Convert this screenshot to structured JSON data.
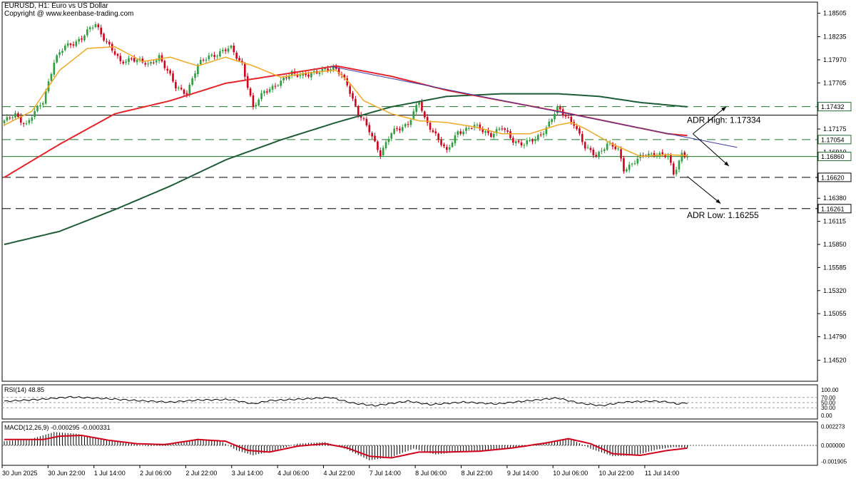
{
  "header": {
    "symbol_line": "EURUSD, H1:  Euro vs US Dollar",
    "copyright": "Copyright @ www.keenbase-trading.com"
  },
  "colors": {
    "background": "#ffffff",
    "bull_candle": "#2e9e3e",
    "bear_candle": "#d0021b",
    "ma_fast": "#f0a824",
    "ma_mid": "#e3242b",
    "ma_slow": "#1e5c36",
    "trendline": "#3a3aa8",
    "macd_line": "#d0021b",
    "histogram": "#000000",
    "price_tag_green": "#1f6f2c",
    "price_tag_black": "#000000"
  },
  "chart_data": {
    "type": "candlestick",
    "timeframe": "H1",
    "price_axis": {
      "range": [
        1.14279,
        1.18632
      ],
      "ticks": [
        "1.18505",
        "1.18235",
        "1.17970",
        "1.17705",
        "1.17435",
        "1.17175",
        "1.16910",
        "1.16645",
        "1.16380",
        "1.16115",
        "1.15850",
        "1.15585",
        "1.15320",
        "1.15055",
        "1.14790",
        "1.14520"
      ]
    },
    "time_axis": {
      "ticks": [
        "30 Jun 2025",
        "30 Jun 22:00",
        "1 Jul 14:00",
        "2 Jul 06:00",
        "2 Jul 22:00",
        "3 Jul 14:00",
        "4 Jul 06:00",
        "4 Jul 22:00",
        "7 Jul 14:00",
        "8 Jul 06:00",
        "8 Jul 22:00",
        "9 Jul 14:00",
        "10 Jul 06:00",
        "10 Jul 22:00",
        "11 Jul 14:00"
      ]
    },
    "price_tags": [
      {
        "value": "1.17432",
        "style": "green"
      },
      {
        "value": "1.17054",
        "style": "green"
      },
      {
        "value": "1.16860",
        "style": "green"
      },
      {
        "value": "1.16620",
        "style": "black"
      },
      {
        "value": "1.16261",
        "style": "black"
      }
    ],
    "horizontal_levels": [
      {
        "price": 1.17432,
        "style": "dashed",
        "color": "#1e7a2a"
      },
      {
        "price": 1.17334,
        "style": "solid",
        "color": "#000000"
      },
      {
        "price": 1.17054,
        "style": "dashed",
        "color": "#1e7a2a"
      },
      {
        "price": 1.1686,
        "style": "solid",
        "color": "#1e7a2a"
      },
      {
        "price": 1.1662,
        "style": "dashed",
        "color": "#000000"
      },
      {
        "price": 1.16261,
        "style": "dashed",
        "color": "#000000"
      }
    ],
    "annotations": [
      {
        "text": "ADR High: 1.17334"
      },
      {
        "text": "ADR Low: 1.16255"
      }
    ],
    "close_anchors": [
      [
        0,
        1.1725
      ],
      [
        4,
        1.1735
      ],
      [
        8,
        1.1722
      ],
      [
        14,
        1.175
      ],
      [
        18,
        1.1795
      ],
      [
        22,
        1.1812
      ],
      [
        28,
        1.1822
      ],
      [
        33,
        1.1838
      ],
      [
        37,
        1.1818
      ],
      [
        42,
        1.1793
      ],
      [
        46,
        1.18
      ],
      [
        52,
        1.179
      ],
      [
        56,
        1.1802
      ],
      [
        62,
        1.1765
      ],
      [
        66,
        1.176
      ],
      [
        70,
        1.179
      ],
      [
        74,
        1.1802
      ],
      [
        78,
        1.1805
      ],
      [
        82,
        1.181
      ],
      [
        86,
        1.1793
      ],
      [
        90,
        1.174
      ],
      [
        94,
        1.1762
      ],
      [
        100,
        1.177
      ],
      [
        104,
        1.1783
      ],
      [
        110,
        1.1778
      ],
      [
        116,
        1.1788
      ],
      [
        120,
        1.1785
      ],
      [
        124,
        1.177
      ],
      [
        128,
        1.1735
      ],
      [
        132,
        1.1715
      ],
      [
        136,
        1.169
      ],
      [
        140,
        1.1712
      ],
      [
        146,
        1.1725
      ],
      [
        150,
        1.1748
      ],
      [
        152,
        1.1728
      ],
      [
        156,
        1.1712
      ],
      [
        160,
        1.169
      ],
      [
        164,
        1.1715
      ],
      [
        170,
        1.172
      ],
      [
        176,
        1.1712
      ],
      [
        180,
        1.1718
      ],
      [
        184,
        1.1705
      ],
      [
        188,
        1.17
      ],
      [
        192,
        1.1705
      ],
      [
        196,
        1.172
      ],
      [
        200,
        1.174
      ],
      [
        206,
        1.1725
      ],
      [
        210,
        1.1695
      ],
      [
        214,
        1.1688
      ],
      [
        218,
        1.17
      ],
      [
        222,
        1.1693
      ],
      [
        224,
        1.1672
      ],
      [
        228,
        1.168
      ],
      [
        232,
        1.1688
      ],
      [
        236,
        1.169
      ],
      [
        240,
        1.1685
      ],
      [
        242,
        1.1665
      ],
      [
        245,
        1.169
      ],
      [
        247,
        1.1686
      ]
    ],
    "ma_fast_anchors": [
      [
        0,
        1.1722
      ],
      [
        10,
        1.1738
      ],
      [
        20,
        1.1785
      ],
      [
        30,
        1.181
      ],
      [
        40,
        1.1812
      ],
      [
        50,
        1.1795
      ],
      [
        60,
        1.18
      ],
      [
        70,
        1.179
      ],
      [
        80,
        1.18
      ],
      [
        90,
        1.179
      ],
      [
        100,
        1.1777
      ],
      [
        110,
        1.1782
      ],
      [
        120,
        1.1785
      ],
      [
        125,
        1.177
      ],
      [
        130,
        1.175
      ],
      [
        140,
        1.1735
      ],
      [
        150,
        1.1727
      ],
      [
        160,
        1.1725
      ],
      [
        170,
        1.172
      ],
      [
        180,
        1.1712
      ],
      [
        190,
        1.1712
      ],
      [
        200,
        1.1722
      ],
      [
        205,
        1.1725
      ],
      [
        210,
        1.1718
      ],
      [
        220,
        1.17
      ],
      [
        230,
        1.1686
      ],
      [
        240,
        1.1688
      ],
      [
        247,
        1.1687
      ]
    ],
    "ma_mid_anchors": [
      [
        0,
        1.1662
      ],
      [
        20,
        1.17
      ],
      [
        40,
        1.1735
      ],
      [
        60,
        1.175
      ],
      [
        80,
        1.177
      ],
      [
        100,
        1.178
      ],
      [
        120,
        1.179
      ],
      [
        140,
        1.1778
      ],
      [
        160,
        1.1762
      ],
      [
        180,
        1.175
      ],
      [
        200,
        1.1738
      ],
      [
        220,
        1.1725
      ],
      [
        240,
        1.1712
      ],
      [
        247,
        1.171
      ]
    ],
    "ma_slow_anchors": [
      [
        0,
        1.1585
      ],
      [
        20,
        1.16
      ],
      [
        40,
        1.1625
      ],
      [
        60,
        1.1652
      ],
      [
        80,
        1.1682
      ],
      [
        100,
        1.1705
      ],
      [
        120,
        1.1725
      ],
      [
        140,
        1.1743
      ],
      [
        160,
        1.1755
      ],
      [
        180,
        1.1758
      ],
      [
        200,
        1.1758
      ],
      [
        215,
        1.1755
      ],
      [
        230,
        1.1748
      ],
      [
        247,
        1.1743
      ]
    ],
    "trendline": {
      "from": [
        118,
        1.17895
      ],
      "to": [
        265,
        1.16964
      ]
    },
    "arrows": [
      {
        "from": [
          249,
          1.1712
        ],
        "to": [
          261,
          1.1743
        ]
      },
      {
        "from": [
          249,
          1.1712
        ],
        "to": [
          262,
          1.1675
        ]
      },
      {
        "from": [
          247,
          1.1663
        ],
        "to": [
          259,
          1.1632
        ]
      }
    ],
    "rsi": {
      "label": "RSI(14) 48.85",
      "value": 48.85,
      "ticks": [
        "100.00",
        "70.00",
        "50.00",
        "30.00",
        "0.00"
      ],
      "anchors": [
        [
          0,
          55
        ],
        [
          12,
          62
        ],
        [
          24,
          72
        ],
        [
          36,
          66
        ],
        [
          48,
          58
        ],
        [
          60,
          52
        ],
        [
          70,
          60
        ],
        [
          82,
          62
        ],
        [
          90,
          45
        ],
        [
          96,
          58
        ],
        [
          108,
          64
        ],
        [
          118,
          70
        ],
        [
          126,
          48
        ],
        [
          134,
          38
        ],
        [
          146,
          56
        ],
        [
          154,
          42
        ],
        [
          166,
          52
        ],
        [
          178,
          45
        ],
        [
          190,
          58
        ],
        [
          200,
          68
        ],
        [
          208,
          48
        ],
        [
          216,
          38
        ],
        [
          224,
          52
        ],
        [
          234,
          56
        ],
        [
          240,
          53
        ],
        [
          243,
          45
        ],
        [
          247,
          49
        ]
      ]
    },
    "macd": {
      "label": "MACD(12,26,9) -0.000295 -0.000331",
      "main": -0.000295,
      "signal": -0.000331,
      "ticks": [
        "0.002273",
        "0.000000",
        "-0.001905"
      ],
      "hist_anchors": [
        [
          0,
          0.0005
        ],
        [
          10,
          0.0008
        ],
        [
          18,
          0.0016
        ],
        [
          26,
          0.0014
        ],
        [
          34,
          0.0009
        ],
        [
          44,
          0.0003
        ],
        [
          52,
          -0.0001
        ],
        [
          60,
          0.0002
        ],
        [
          70,
          0.0008
        ],
        [
          78,
          0.0006
        ],
        [
          84,
          -0.0006
        ],
        [
          90,
          -0.0012
        ],
        [
          98,
          -0.0006
        ],
        [
          106,
          0.0002
        ],
        [
          116,
          0.0004
        ],
        [
          124,
          -0.0005
        ],
        [
          132,
          -0.0018
        ],
        [
          140,
          -0.0014
        ],
        [
          148,
          -0.0004
        ],
        [
          156,
          -0.0011
        ],
        [
          166,
          -0.0007
        ],
        [
          176,
          -0.0006
        ],
        [
          186,
          -0.0002
        ],
        [
          196,
          0.0004
        ],
        [
          204,
          0.0009
        ],
        [
          212,
          -0.0004
        ],
        [
          220,
          -0.0013
        ],
        [
          228,
          -0.0012
        ],
        [
          236,
          -0.0005
        ],
        [
          242,
          -0.0002
        ],
        [
          247,
          -0.0003
        ]
      ],
      "signal_anchors": [
        [
          0,
          0.0007
        ],
        [
          14,
          0.0007
        ],
        [
          20,
          0.0011
        ],
        [
          28,
          0.0012
        ],
        [
          38,
          0.0006
        ],
        [
          48,
          0.0002
        ],
        [
          58,
          0.0001
        ],
        [
          70,
          0.0007
        ],
        [
          80,
          0.0005
        ],
        [
          88,
          -0.0006
        ],
        [
          96,
          -0.0008
        ],
        [
          106,
          -0.0001
        ],
        [
          116,
          0.0002
        ],
        [
          124,
          -0.0003
        ],
        [
          132,
          -0.0013
        ],
        [
          140,
          -0.0015
        ],
        [
          150,
          -0.0008
        ],
        [
          160,
          -0.0008
        ],
        [
          172,
          -0.0007
        ],
        [
          184,
          -0.0003
        ],
        [
          196,
          0.0003
        ],
        [
          204,
          0.0008
        ],
        [
          212,
          0.0002
        ],
        [
          220,
          -0.001
        ],
        [
          230,
          -0.0012
        ],
        [
          240,
          -0.0006
        ],
        [
          247,
          -0.00033
        ]
      ]
    }
  }
}
